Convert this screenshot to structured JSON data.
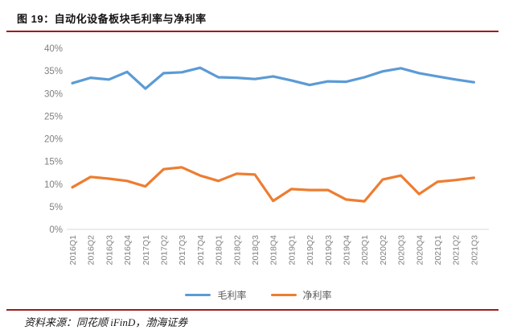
{
  "figure": {
    "title": "图 19：自动化设备板块毛利率与净利率",
    "source": "资料来源：同花顺 iFinD，渤海证券"
  },
  "colors": {
    "gross_margin_line": "#5B9BD5",
    "net_margin_line": "#ED7D31",
    "rule": "#9E1B1B",
    "axis_text": "#808080",
    "legend_text": "#595959",
    "axis_line": "#D9D9D9"
  },
  "chart_data": {
    "type": "line",
    "title": "自动化设备板块毛利率与净利率",
    "categories": [
      "2016Q1",
      "2016Q2",
      "2016Q3",
      "2016Q4",
      "2017Q1",
      "2017Q2",
      "2017Q3",
      "2017Q4",
      "2018Q1",
      "2018Q2",
      "2018Q3",
      "2018Q4",
      "2019Q1",
      "2019Q2",
      "2019Q3",
      "2019Q4",
      "2020Q1",
      "2020Q2",
      "2020Q3",
      "2020Q4",
      "2021Q1",
      "2021Q2",
      "2021Q3"
    ],
    "series": [
      {
        "name": "毛利率",
        "color": "#5B9BD5",
        "values": [
          32.3,
          33.5,
          33.1,
          34.8,
          31.1,
          34.5,
          34.7,
          35.7,
          33.6,
          33.5,
          33.2,
          33.8,
          32.9,
          31.9,
          32.7,
          32.6,
          33.6,
          34.9,
          35.6,
          34.5,
          33.8,
          33.1,
          32.5
        ]
      },
      {
        "name": "净利率",
        "color": "#ED7D31",
        "values": [
          9.3,
          11.6,
          11.2,
          10.7,
          9.5,
          13.3,
          13.7,
          11.9,
          10.7,
          12.3,
          12.1,
          6.3,
          8.9,
          8.7,
          8.7,
          6.6,
          6.2,
          11.0,
          11.9,
          7.8,
          10.5,
          10.9,
          11.4
        ]
      }
    ],
    "ylim": [
      0,
      40
    ],
    "y_ticks": [
      0,
      5,
      10,
      15,
      20,
      25,
      30,
      35,
      40
    ],
    "y_tick_suffix": "%",
    "x_label_rotation": -90,
    "grid": false,
    "legend_position": "bottom"
  }
}
